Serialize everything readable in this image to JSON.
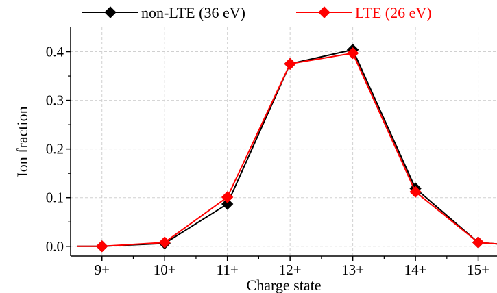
{
  "chart_data": {
    "type": "line",
    "categories": [
      "9+",
      "10+",
      "11+",
      "12+",
      "13+",
      "14+",
      "15+"
    ],
    "x": [
      9,
      10,
      11,
      12,
      13,
      14,
      15
    ],
    "xlim": [
      8.5,
      15.3
    ],
    "xlabel": "Charge state",
    "ylabel": "Ion fraction",
    "ylim": [
      -0.02,
      0.45
    ],
    "yticks": [
      0.0,
      0.1,
      0.2,
      0.3,
      0.4
    ],
    "ytick_labels": [
      "0.0",
      "0.1",
      "0.2",
      "0.3",
      "0.4"
    ],
    "grid": true,
    "legend_position": "top",
    "series": [
      {
        "name": "non-LTE (36 eV)",
        "color": "#000000",
        "marker": "diamond",
        "x": [
          8.6,
          9,
          10,
          11,
          12,
          13,
          14,
          15,
          15.3
        ],
        "values": [
          0.0,
          0.0,
          0.006,
          0.087,
          0.375,
          0.404,
          0.119,
          0.008,
          0.005
        ]
      },
      {
        "name": "LTE (26 eV)",
        "color": "#ff0000",
        "marker": "diamond",
        "x": [
          8.6,
          9,
          10,
          11,
          12,
          13,
          14,
          15,
          15.3
        ],
        "values": [
          0.0,
          0.0,
          0.008,
          0.101,
          0.375,
          0.397,
          0.112,
          0.008,
          0.005
        ]
      }
    ],
    "marker_x": [
      9,
      10,
      11,
      12,
      13,
      14,
      15
    ]
  }
}
